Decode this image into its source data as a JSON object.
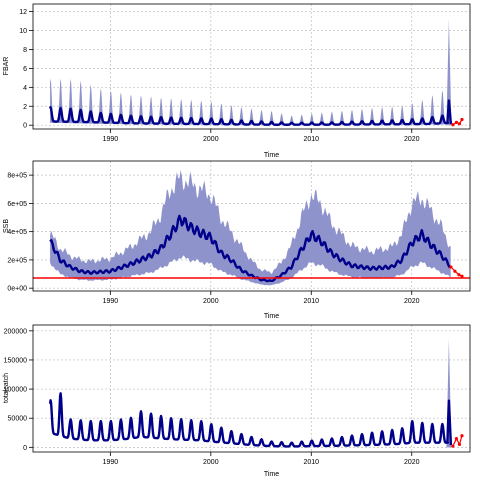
{
  "chart_data": [
    {
      "type": "line",
      "id": "fbar",
      "xlabel": "Time",
      "ylabel": "FBAR",
      "xlim": [
        1982.3,
        2025.8
      ],
      "ylim": [
        -0.4,
        12.8
      ],
      "xticks": [
        1990,
        2000,
        2010,
        2020
      ],
      "yticks": [
        0,
        2,
        4,
        6,
        8,
        10,
        12
      ],
      "ytick_labels": [
        "0",
        "2",
        "4",
        "6",
        "8",
        "10",
        "12"
      ],
      "grid": true,
      "seasonal": true,
      "series": [
        {
          "name": "",
          "x": [
            1984.0,
            1986.5,
            1989.0,
            1992.0,
            1996.0,
            2000.0,
            2003.0,
            2005.0,
            2006.0,
            2008.0,
            2012.0,
            2016.0,
            2019.0,
            2021.0,
            2022.0,
            2023.0,
            2023.6
          ],
          "lo": [
            0.25,
            0.2,
            0.15,
            0.1,
            0.08,
            0.06,
            0.04,
            0.03,
            0.03,
            0.03,
            0.04,
            0.05,
            0.05,
            0.06,
            0.06,
            0.07,
            0.08
          ],
          "hi": [
            4.8,
            4.8,
            3.8,
            3.2,
            2.8,
            2.5,
            1.9,
            1.6,
            1.5,
            1.0,
            1.4,
            1.8,
            2.0,
            2.6,
            3.1,
            3.6,
            4.0
          ],
          "mid": [
            1.9,
            1.7,
            1.3,
            1.0,
            0.8,
            0.7,
            0.5,
            0.4,
            0.35,
            0.25,
            0.3,
            0.45,
            0.55,
            0.7,
            0.85,
            1.0,
            1.1
          ],
          "base": [
            0.4,
            0.35,
            0.3,
            0.2,
            0.15,
            0.12,
            0.08,
            0.06,
            0.05,
            0.05,
            0.06,
            0.08,
            0.1,
            0.12,
            0.15,
            0.2,
            0.25
          ],
          "spike": {
            "x": 2023.7,
            "mid": 2.6,
            "hi": 11.2
          }
        }
      ],
      "forecast": {
        "x": [
          2024.1,
          2024.45,
          2024.75,
          2025.0
        ],
        "y": [
          0.05,
          0.3,
          0.15,
          0.6
        ]
      }
    },
    {
      "type": "line",
      "id": "ssb",
      "xlabel": "Time",
      "ylabel": "SSB",
      "xlim": [
        1982.3,
        2025.8
      ],
      "ylim": [
        -20000,
        900000
      ],
      "xticks": [
        1990,
        2000,
        2010,
        2020
      ],
      "yticks": [
        0,
        200000,
        400000,
        600000,
        800000
      ],
      "ytick_labels": [
        "0e+00",
        "2e+05",
        "4e+05",
        "6e+05",
        "8e+05"
      ],
      "grid": true,
      "reference_line": 72000,
      "series": [
        {
          "name": "",
          "x": [
            1984.0,
            1984.5,
            1985.0,
            1986.0,
            1987.0,
            1988.0,
            1990.0,
            1992.0,
            1994.0,
            1995.0,
            1996.0,
            1997.0,
            1998.0,
            1999.0,
            2000.0,
            2001.0,
            2002.0,
            2003.0,
            2004.0,
            2005.0,
            2006.0,
            2007.0,
            2008.0,
            2009.0,
            2010.0,
            2011.0,
            2012.0,
            2013.0,
            2014.0,
            2016.0,
            2018.0,
            2019.0,
            2020.0,
            2021.0,
            2022.0,
            2023.0,
            2023.9
          ],
          "mid": [
            330000,
            270000,
            200000,
            150000,
            120000,
            110000,
            120000,
            170000,
            230000,
            280000,
            380000,
            490000,
            430000,
            390000,
            360000,
            250000,
            200000,
            130000,
            90000,
            60000,
            50000,
            90000,
            150000,
            270000,
            380000,
            330000,
            250000,
            200000,
            160000,
            140000,
            150000,
            200000,
            320000,
            380000,
            300000,
            230000,
            150000
          ],
          "lo": [
            180000,
            140000,
            100000,
            75000,
            60000,
            55000,
            60000,
            85000,
            110000,
            140000,
            180000,
            220000,
            200000,
            185000,
            170000,
            120000,
            95000,
            65000,
            45000,
            25000,
            20000,
            40000,
            70000,
            130000,
            180000,
            160000,
            120000,
            95000,
            80000,
            70000,
            75000,
            95000,
            150000,
            180000,
            145000,
            110000,
            75000
          ],
          "hi": [
            380000,
            340000,
            280000,
            230000,
            200000,
            190000,
            210000,
            290000,
            400000,
            520000,
            700000,
            780000,
            740000,
            700000,
            660000,
            500000,
            400000,
            300000,
            200000,
            130000,
            110000,
            180000,
            300000,
            500000,
            660000,
            600000,
            460000,
            380000,
            300000,
            260000,
            290000,
            380000,
            600000,
            640000,
            540000,
            430000,
            280000
          ]
        }
      ],
      "forecast": {
        "x": [
          2023.9,
          2024.3,
          2024.7,
          2025.0
        ],
        "y": [
          150000,
          120000,
          95000,
          85000
        ]
      }
    },
    {
      "type": "line",
      "id": "catch",
      "xlabel": "Time",
      "ylabel": "totalcatch",
      "xlim": [
        1982.3,
        2025.8
      ],
      "ylim": [
        -8000,
        210000
      ],
      "xticks": [
        1990,
        2000,
        2010,
        2020
      ],
      "yticks": [
        0,
        50000,
        100000,
        150000,
        200000
      ],
      "ytick_labels": [
        "0",
        "50000",
        "100000",
        "150000",
        "200000"
      ],
      "grid": true,
      "seasonal": true,
      "series": [
        {
          "name": "",
          "x": [
            1984.0,
            1985.0,
            1986.0,
            1988.0,
            1990.0,
            1992.0,
            1993.0,
            1996.0,
            1999.0,
            2000.0,
            2002.0,
            2004.0,
            2006.0,
            2008.0,
            2012.0,
            2016.0,
            2019.0,
            2020.0,
            2021.0,
            2022.0,
            2023.0,
            2023.6
          ],
          "mid": [
            80000,
            95000,
            48000,
            45000,
            45000,
            50000,
            62000,
            50000,
            45000,
            40000,
            28000,
            18000,
            10000,
            8000,
            15000,
            25000,
            32000,
            45000,
            42000,
            40000,
            40000,
            40000
          ],
          "base": [
            25000,
            20000,
            15000,
            12000,
            12000,
            15000,
            18000,
            14000,
            12000,
            10000,
            7000,
            4000,
            2000,
            1500,
            2500,
            4000,
            6000,
            8000,
            8000,
            8000,
            8000,
            8000
          ],
          "spike": {
            "x": 2023.7,
            "mid": 80000,
            "hi": 185000
          }
        }
      ],
      "forecast": {
        "x": [
          2024.1,
          2024.45,
          2024.75,
          2025.0
        ],
        "y": [
          2000,
          15000,
          5000,
          20000
        ]
      }
    }
  ]
}
